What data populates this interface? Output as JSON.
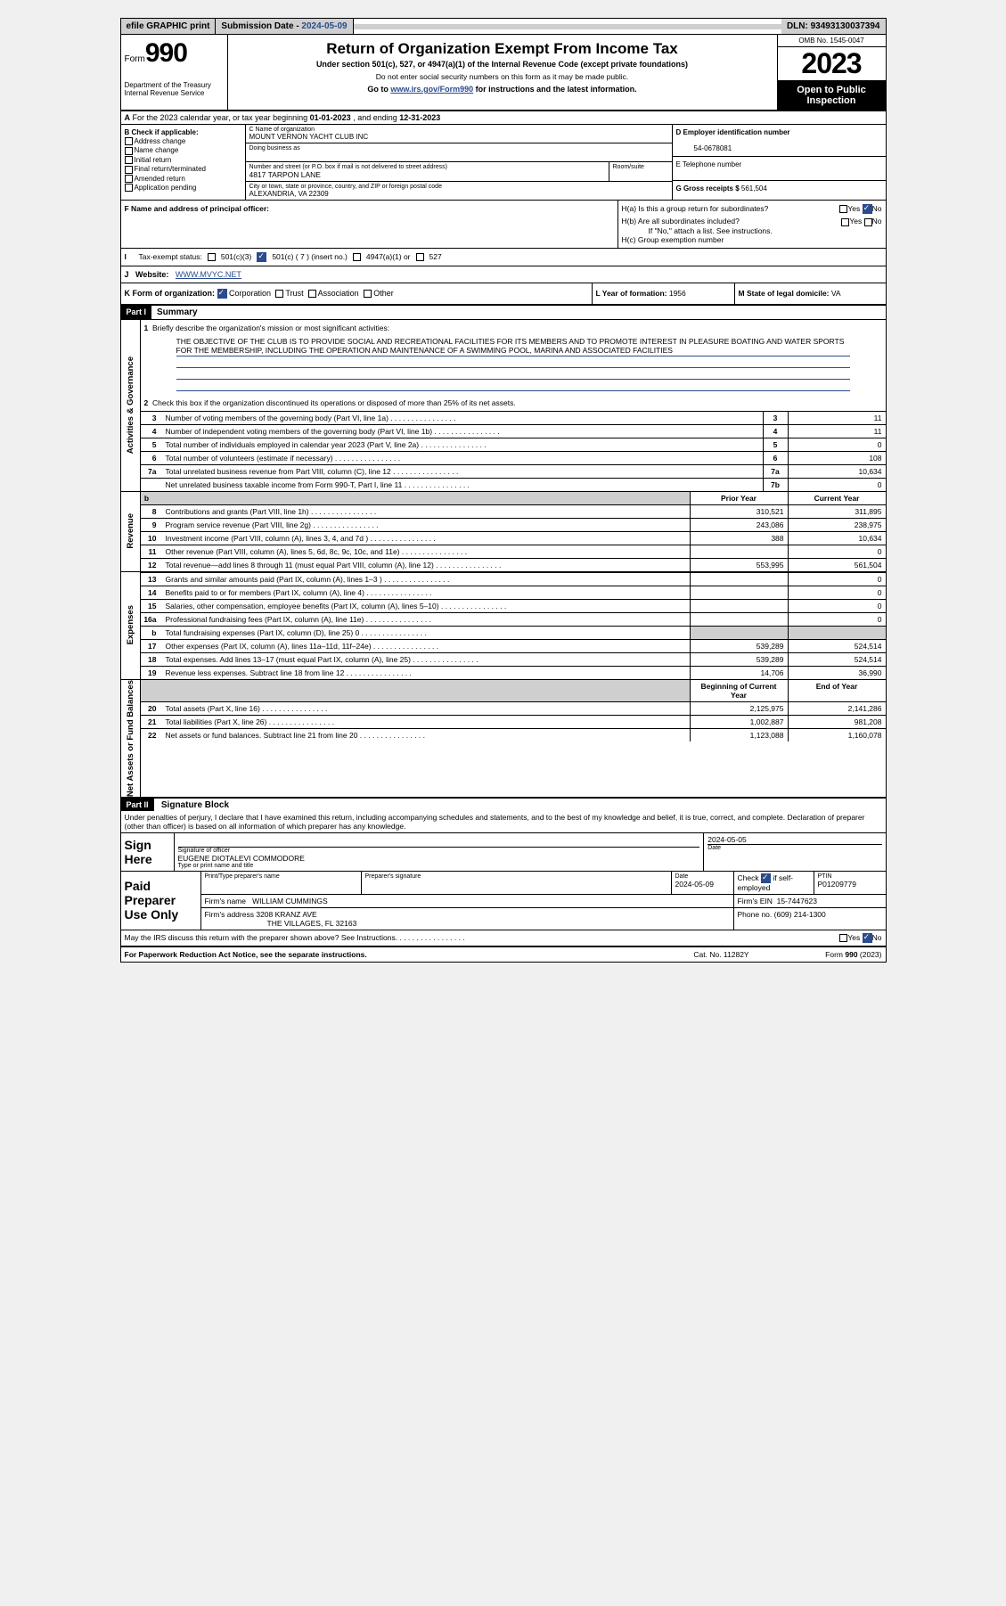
{
  "topbar": {
    "efile": "efile GRAPHIC print",
    "subdate_label": "Submission Date - ",
    "subdate_val": "2024-05-09",
    "dln_label": "DLN: ",
    "dln_val": "93493130037394"
  },
  "header": {
    "form_prefix": "Form",
    "form_num": "990",
    "dept": "Department of the Treasury\nInternal Revenue Service",
    "title": "Return of Organization Exempt From Income Tax",
    "sub1": "Under section 501(c), 527, or 4947(a)(1) of the Internal Revenue Code (except private foundations)",
    "sub2": "Do not enter social security numbers on this form as it may be made public.",
    "sub3_pre": "Go to ",
    "sub3_link": "www.irs.gov/Form990",
    "sub3_post": " for instructions and the latest information.",
    "omb": "OMB No. 1545-0047",
    "year": "2023",
    "public": "Open to Public Inspection"
  },
  "line_a": {
    "text_pre": "For the 2023 calendar year, or tax year beginning ",
    "begin": "01-01-2023",
    "mid": " , and ending ",
    "end": "12-31-2023"
  },
  "block_b": {
    "head": "B Check if applicable:",
    "opts": [
      "Address change",
      "Name change",
      "Initial return",
      "Final return/terminated",
      "Amended return",
      "Application pending"
    ]
  },
  "block_c": {
    "name_label": "C Name of organization",
    "name": "MOUNT VERNON YACHT CLUB INC",
    "dba_label": "Doing business as",
    "street_label": "Number and street (or P.O. box if mail is not delivered to street address)",
    "street": "4817 TARPON LANE",
    "room_label": "Room/suite",
    "city_label": "City or town, state or province, country, and ZIP or foreign postal code",
    "city": "ALEXANDRIA, VA  22309"
  },
  "block_d": {
    "ein_label": "D Employer identification number",
    "ein": "54-0678081",
    "tel_label": "E Telephone number",
    "gross_label": "G Gross receipts $ ",
    "gross": "561,504"
  },
  "line_f": "F  Name and address of principal officer:",
  "line_h": {
    "ha": "H(a)  Is this a group return for subordinates?",
    "hb": "H(b)  Are all subordinates included?",
    "hb_note": "If \"No,\" attach a list. See instructions.",
    "hc": "H(c)  Group exemption number"
  },
  "line_i": {
    "label": "Tax-exempt status:",
    "opts": [
      "501(c)(3)",
      "501(c) ( 7 ) (insert no.)",
      "4947(a)(1) or",
      "527"
    ]
  },
  "line_j": {
    "label": "J",
    "text": "Website:",
    "url": "WWW.MVYC.NET"
  },
  "line_k": {
    "label": "K Form of organization:",
    "opts": [
      "Corporation",
      "Trust",
      "Association",
      "Other"
    ],
    "l_label": "L Year of formation: ",
    "l_val": "1956",
    "m_label": "M State of legal domicile: ",
    "m_val": "VA"
  },
  "part1": {
    "header": "Part I",
    "title": "Summary",
    "q1": "Briefly describe the organization's mission or most significant activities:",
    "mission": "THE OBJECTIVE OF THE CLUB IS TO PROVIDE SOCIAL AND RECREATIONAL FACILITIES FOR ITS MEMBERS AND TO PROMOTE INTEREST IN PLEASURE BOATING AND WATER SPORTS FOR THE MEMBERSHIP, INCLUDING THE OPERATION AND MAINTENANCE OF A SWIMMING POOL, MARINA AND ASSOCIATED FACILITIES",
    "q2": "Check this box   if the organization discontinued its operations or disposed of more than 25% of its net assets.",
    "governance": {
      "label": "Activities & Governance",
      "rows": [
        {
          "n": "3",
          "d": "Number of voting members of the governing body (Part VI, line 1a)",
          "box": "3",
          "v": "11"
        },
        {
          "n": "4",
          "d": "Number of independent voting members of the governing body (Part VI, line 1b)",
          "box": "4",
          "v": "11"
        },
        {
          "n": "5",
          "d": "Total number of individuals employed in calendar year 2023 (Part V, line 2a)",
          "box": "5",
          "v": "0"
        },
        {
          "n": "6",
          "d": "Total number of volunteers (estimate if necessary)",
          "box": "6",
          "v": "108"
        },
        {
          "n": "7a",
          "d": "Total unrelated business revenue from Part VIII, column (C), line 12",
          "box": "7a",
          "v": "10,634"
        },
        {
          "n": "",
          "d": "Net unrelated business taxable income from Form 990-T, Part I, line 11",
          "box": "7b",
          "v": "0"
        }
      ]
    },
    "revenue": {
      "label": "Revenue",
      "header_prior": "Prior Year",
      "header_current": "Current Year",
      "rows": [
        {
          "n": "8",
          "d": "Contributions and grants (Part VIII, line 1h)",
          "p": "310,521",
          "c": "311,895"
        },
        {
          "n": "9",
          "d": "Program service revenue (Part VIII, line 2g)",
          "p": "243,086",
          "c": "238,975"
        },
        {
          "n": "10",
          "d": "Investment income (Part VIII, column (A), lines 3, 4, and 7d )",
          "p": "388",
          "c": "10,634"
        },
        {
          "n": "11",
          "d": "Other revenue (Part VIII, column (A), lines 5, 6d, 8c, 9c, 10c, and 11e)",
          "p": "",
          "c": "0"
        },
        {
          "n": "12",
          "d": "Total revenue—add lines 8 through 11 (must equal Part VIII, column (A), line 12)",
          "p": "553,995",
          "c": "561,504"
        }
      ]
    },
    "expenses": {
      "label": "Expenses",
      "rows": [
        {
          "n": "13",
          "d": "Grants and similar amounts paid (Part IX, column (A), lines 1–3 )",
          "p": "",
          "c": "0"
        },
        {
          "n": "14",
          "d": "Benefits paid to or for members (Part IX, column (A), line 4)",
          "p": "",
          "c": "0"
        },
        {
          "n": "15",
          "d": "Salaries, other compensation, employee benefits (Part IX, column (A), lines 5–10)",
          "p": "",
          "c": "0"
        },
        {
          "n": "16a",
          "d": "Professional fundraising fees (Part IX, column (A), line 11e)",
          "p": "",
          "c": "0"
        },
        {
          "n": "b",
          "d": "Total fundraising expenses (Part IX, column (D), line 25) 0",
          "p": "SHADE",
          "c": "SHADE"
        },
        {
          "n": "17",
          "d": "Other expenses (Part IX, column (A), lines 11a–11d, 11f–24e)",
          "p": "539,289",
          "c": "524,514"
        },
        {
          "n": "18",
          "d": "Total expenses. Add lines 13–17 (must equal Part IX, column (A), line 25)",
          "p": "539,289",
          "c": "524,514"
        },
        {
          "n": "19",
          "d": "Revenue less expenses. Subtract line 18 from line 12",
          "p": "14,706",
          "c": "36,990"
        }
      ]
    },
    "netassets": {
      "label": "Net Assets or Fund Balances",
      "header_prior": "Beginning of Current Year",
      "header_current": "End of Year",
      "rows": [
        {
          "n": "20",
          "d": "Total assets (Part X, line 16)",
          "p": "2,125,975",
          "c": "2,141,286"
        },
        {
          "n": "21",
          "d": "Total liabilities (Part X, line 26)",
          "p": "1,002,887",
          "c": "981,208"
        },
        {
          "n": "22",
          "d": "Net assets or fund balances. Subtract line 21 from line 20",
          "p": "1,123,088",
          "c": "1,160,078"
        }
      ]
    }
  },
  "part2": {
    "header": "Part II",
    "title": "Signature Block",
    "decl": "Under penalties of perjury, I declare that I have examined this return, including accompanying schedules and statements, and to the best of my knowledge and belief, it is true, correct, and complete. Declaration of preparer (other than officer) is based on all information of which preparer has any knowledge."
  },
  "sign": {
    "label": "Sign Here",
    "sig_label": "Signature of officer",
    "name": "EUGENE DIOTALEVI COMMODORE",
    "name_label": "Type or print name and title",
    "date_label": "Date",
    "date": "2024-05-05"
  },
  "paid": {
    "label": "Paid Preparer Use Only",
    "print_label": "Print/Type preparer's name",
    "sig_label": "Preparer's signature",
    "date_label": "Date",
    "date": "2024-05-09",
    "check_label": "Check",
    "check_suffix": "if self-employed",
    "ptin_label": "PTIN",
    "ptin": "P01209779",
    "firm_name_label": "Firm's name",
    "firm_name": "WILLIAM CUMMINGS",
    "firm_ein_label": "Firm's EIN",
    "firm_ein": "15-7447623",
    "firm_addr_label": "Firm's address",
    "firm_addr1": "3208 KRANZ AVE",
    "firm_addr2": "THE VILLAGES, FL  32163",
    "phone_label": "Phone no.",
    "phone": "(609) 214-1300"
  },
  "discuss": "May the IRS discuss this return with the preparer shown above? See Instructions.",
  "footer": {
    "f1": "For Paperwork Reduction Act Notice, see the separate instructions.",
    "f2": "Cat. No. 11282Y",
    "f3": "Form 990 (2023)"
  },
  "yes": "Yes",
  "no": "No"
}
